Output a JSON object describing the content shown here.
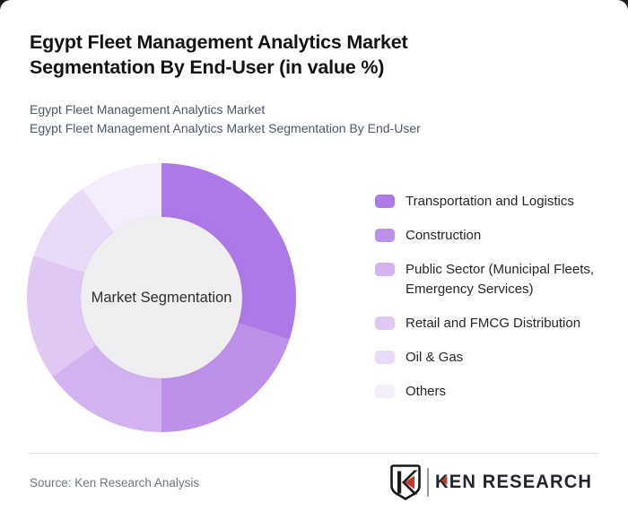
{
  "header": {
    "title": "Egypt Fleet Management Analytics Market Segmentation By End-User (in value %)",
    "subtitles": [
      "Egypt Fleet Management Analytics Market",
      "Egypt Fleet Management Analytics Market Segmentation By End-User"
    ]
  },
  "chart_data": {
    "type": "pie",
    "variant": "donut",
    "title": "Egypt Fleet Management Analytics Market Segmentation By End-User (in value %)",
    "center_label": "Market Segmentation",
    "categories": [
      "Transportation and Logistics",
      "Construction",
      "Public Sector (Municipal Fleets, Emergency Services)",
      "Retail and FMCG Distribution",
      "Oil & Gas",
      "Others"
    ],
    "values": [
      30,
      20,
      15,
      15,
      10,
      10
    ],
    "unit": "% of value (estimated from segment angles; no numeric labels shown)",
    "colors": [
      "#ad79e6",
      "#bd90e9",
      "#d2b3ef",
      "#dfc8f4",
      "#e9dbf8",
      "#f4edfb"
    ],
    "hole_color": "#efeff1",
    "start_angle_deg": 0,
    "direction": "clockwise",
    "legend_position": "right",
    "grid": false
  },
  "footer": {
    "source": "Source: Ken Research Analysis",
    "logo": {
      "badge_letter": "K",
      "brand_text_k": "K",
      "brand_text_rest": "EN RESEARCH",
      "red": "#c13a32",
      "dark": "#22252b"
    }
  }
}
